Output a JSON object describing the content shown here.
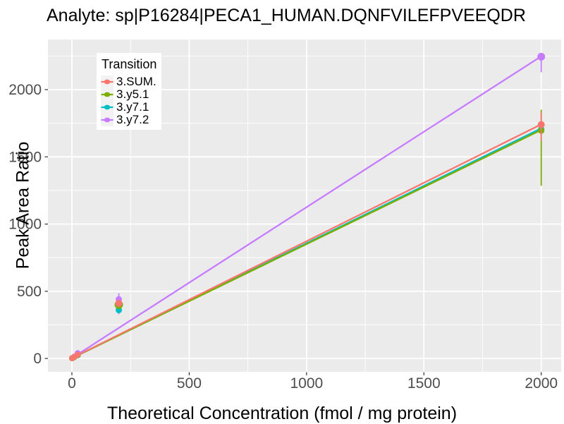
{
  "title": "Analyte: sp|P16284|PECA1_HUMAN.DQNFVILEFPVEEQDR",
  "colors": {
    "panel_bg": "#EBEBEB",
    "grid": "#FFFFFF",
    "tick_text": "#4D4D4D",
    "tick_mark": "#333333",
    "title_text": "#000000",
    "legend_bg": "#FFFFFF",
    "legend_key_bg": "#F2F2F2"
  },
  "chart_data": {
    "type": "line",
    "title": "Analyte: sp|P16284|PECA1_HUMAN.DQNFVILEFPVEEQDR",
    "xlabel": "Theoretical Concentration (fmol / mg protein)",
    "ylabel": "Peak Area Ratio",
    "x_ticks": [
      0,
      500,
      1000,
      1500,
      2000
    ],
    "y_ticks": [
      0,
      500,
      1000,
      1500,
      2000
    ],
    "x_minor": [
      250,
      750,
      1250,
      1750
    ],
    "y_minor": [
      250,
      750,
      1250,
      1750,
      2250
    ],
    "xlim": [
      -102,
      2085
    ],
    "ylim": [
      -99,
      2373
    ],
    "grid": "white major and minor gridlines on gray panel",
    "legend": {
      "title": "Transition",
      "position": "inside-top-left"
    },
    "series": [
      {
        "name": "3.SUM.",
        "color": "#F8766D",
        "line": {
          "x1": 0,
          "y1": 3,
          "x2": 2000,
          "y2": 1742
        },
        "points": [
          {
            "x": 1,
            "y": 2
          },
          {
            "x": 10,
            "y": 12
          },
          {
            "x": 25,
            "y": 28
          },
          {
            "x": 200,
            "y": 410,
            "r": 5
          },
          {
            "x": 2000,
            "y": 1740,
            "ymin": 1620,
            "ymax": 1830,
            "r": 5
          }
        ]
      },
      {
        "name": "3.y5.1",
        "color": "#7CAE00",
        "line": {
          "x1": 0,
          "y1": 2,
          "x2": 2000,
          "y2": 1700
        },
        "points": [
          {
            "x": 1,
            "y": 2
          },
          {
            "x": 10,
            "y": 10
          },
          {
            "x": 25,
            "y": 25
          },
          {
            "x": 200,
            "y": 400,
            "r": 6
          },
          {
            "x": 2000,
            "y": 1695,
            "ymin": 1285,
            "ymax": 1850,
            "r": 4.5
          }
        ]
      },
      {
        "name": "3.y7.1",
        "color": "#00BFC4",
        "line": {
          "x1": 0,
          "y1": 2,
          "x2": 2000,
          "y2": 1712
        },
        "points": [
          {
            "x": 1,
            "y": 2
          },
          {
            "x": 10,
            "y": 10
          },
          {
            "x": 25,
            "y": 24
          },
          {
            "x": 200,
            "y": 360,
            "r": 4.5
          },
          {
            "x": 2000,
            "y": 1705,
            "r": 4.5
          }
        ]
      },
      {
        "name": "3.y7.2",
        "color": "#C77CFF",
        "line": {
          "x1": 0,
          "y1": 3,
          "x2": 2000,
          "y2": 2248
        },
        "points": [
          {
            "x": 1,
            "y": 3
          },
          {
            "x": 10,
            "y": 14
          },
          {
            "x": 25,
            "y": 40
          },
          {
            "x": 200,
            "y": 440,
            "ymin": 330,
            "ymax": 485,
            "r": 4.5
          },
          {
            "x": 2000,
            "y": 2245,
            "ymin": 2130,
            "ymax": 2258,
            "r": 5.5
          }
        ]
      }
    ]
  }
}
